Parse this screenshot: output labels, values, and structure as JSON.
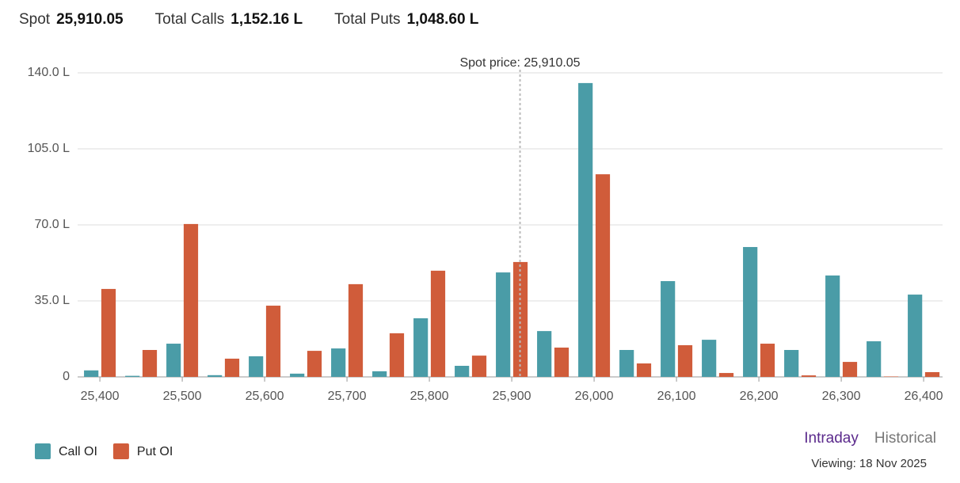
{
  "header": {
    "spot_label": "Spot",
    "spot_value": "25,910.05",
    "calls_label": "Total Calls",
    "calls_value": "1,152.16 L",
    "puts_label": "Total Puts",
    "puts_value": "1,048.60 L"
  },
  "footer": {
    "tabs": [
      "Intraday",
      "Historical"
    ],
    "viewing": "Viewing: 18 Nov 2025"
  },
  "chart_data": {
    "type": "bar",
    "x": [
      25400,
      25450,
      25500,
      25550,
      25600,
      25650,
      25700,
      25750,
      25800,
      25850,
      25900,
      25950,
      26000,
      26050,
      26100,
      26150,
      26200,
      26250,
      26300,
      26350,
      26400
    ],
    "series": [
      {
        "name": "Call OI",
        "color": "#4a9ca7",
        "values": [
          3,
          0.5,
          15.3,
          0.8,
          9.5,
          1.5,
          13.1,
          2.6,
          27,
          5.1,
          48.1,
          21.1,
          135.3,
          12.4,
          44.1,
          17.1,
          59.8,
          12.4,
          46.7,
          16.4,
          37.9
        ]
      },
      {
        "name": "Put OI",
        "color": "#d05c3a",
        "values": [
          40.5,
          12.4,
          70.4,
          8.4,
          32.8,
          12,
          42.7,
          20.1,
          48.9,
          9.8,
          52.9,
          13.5,
          93.3,
          6.2,
          14.6,
          1.8,
          15.3,
          0.7,
          6.9,
          0.2,
          2.2
        ]
      }
    ],
    "xlim": [
      25373,
      26423
    ],
    "xticks": [
      {
        "value": 25400,
        "label": "25,400"
      },
      {
        "value": 25500,
        "label": "25,500"
      },
      {
        "value": 25600,
        "label": "25,600"
      },
      {
        "value": 25700,
        "label": "25,700"
      },
      {
        "value": 25800,
        "label": "25,800"
      },
      {
        "value": 25900,
        "label": "25,900"
      },
      {
        "value": 26000,
        "label": "26,000"
      },
      {
        "value": 26100,
        "label": "26,100"
      },
      {
        "value": 26200,
        "label": "26,200"
      },
      {
        "value": 26300,
        "label": "26,300"
      },
      {
        "value": 26400,
        "label": "26,400"
      }
    ],
    "ylim": [
      0,
      140
    ],
    "yticks": [
      0,
      {
        "value": 35,
        "label": "35.0 L"
      },
      {
        "value": 70,
        "label": "70.0 L"
      },
      {
        "value": 105,
        "label": "105.0 L"
      },
      {
        "value": 140,
        "label": "140.0 L"
      }
    ],
    "grid": true,
    "legend": "bottom-left",
    "spot_line": {
      "value": 25910.05,
      "label": "Spot price: 25,910.05"
    }
  }
}
